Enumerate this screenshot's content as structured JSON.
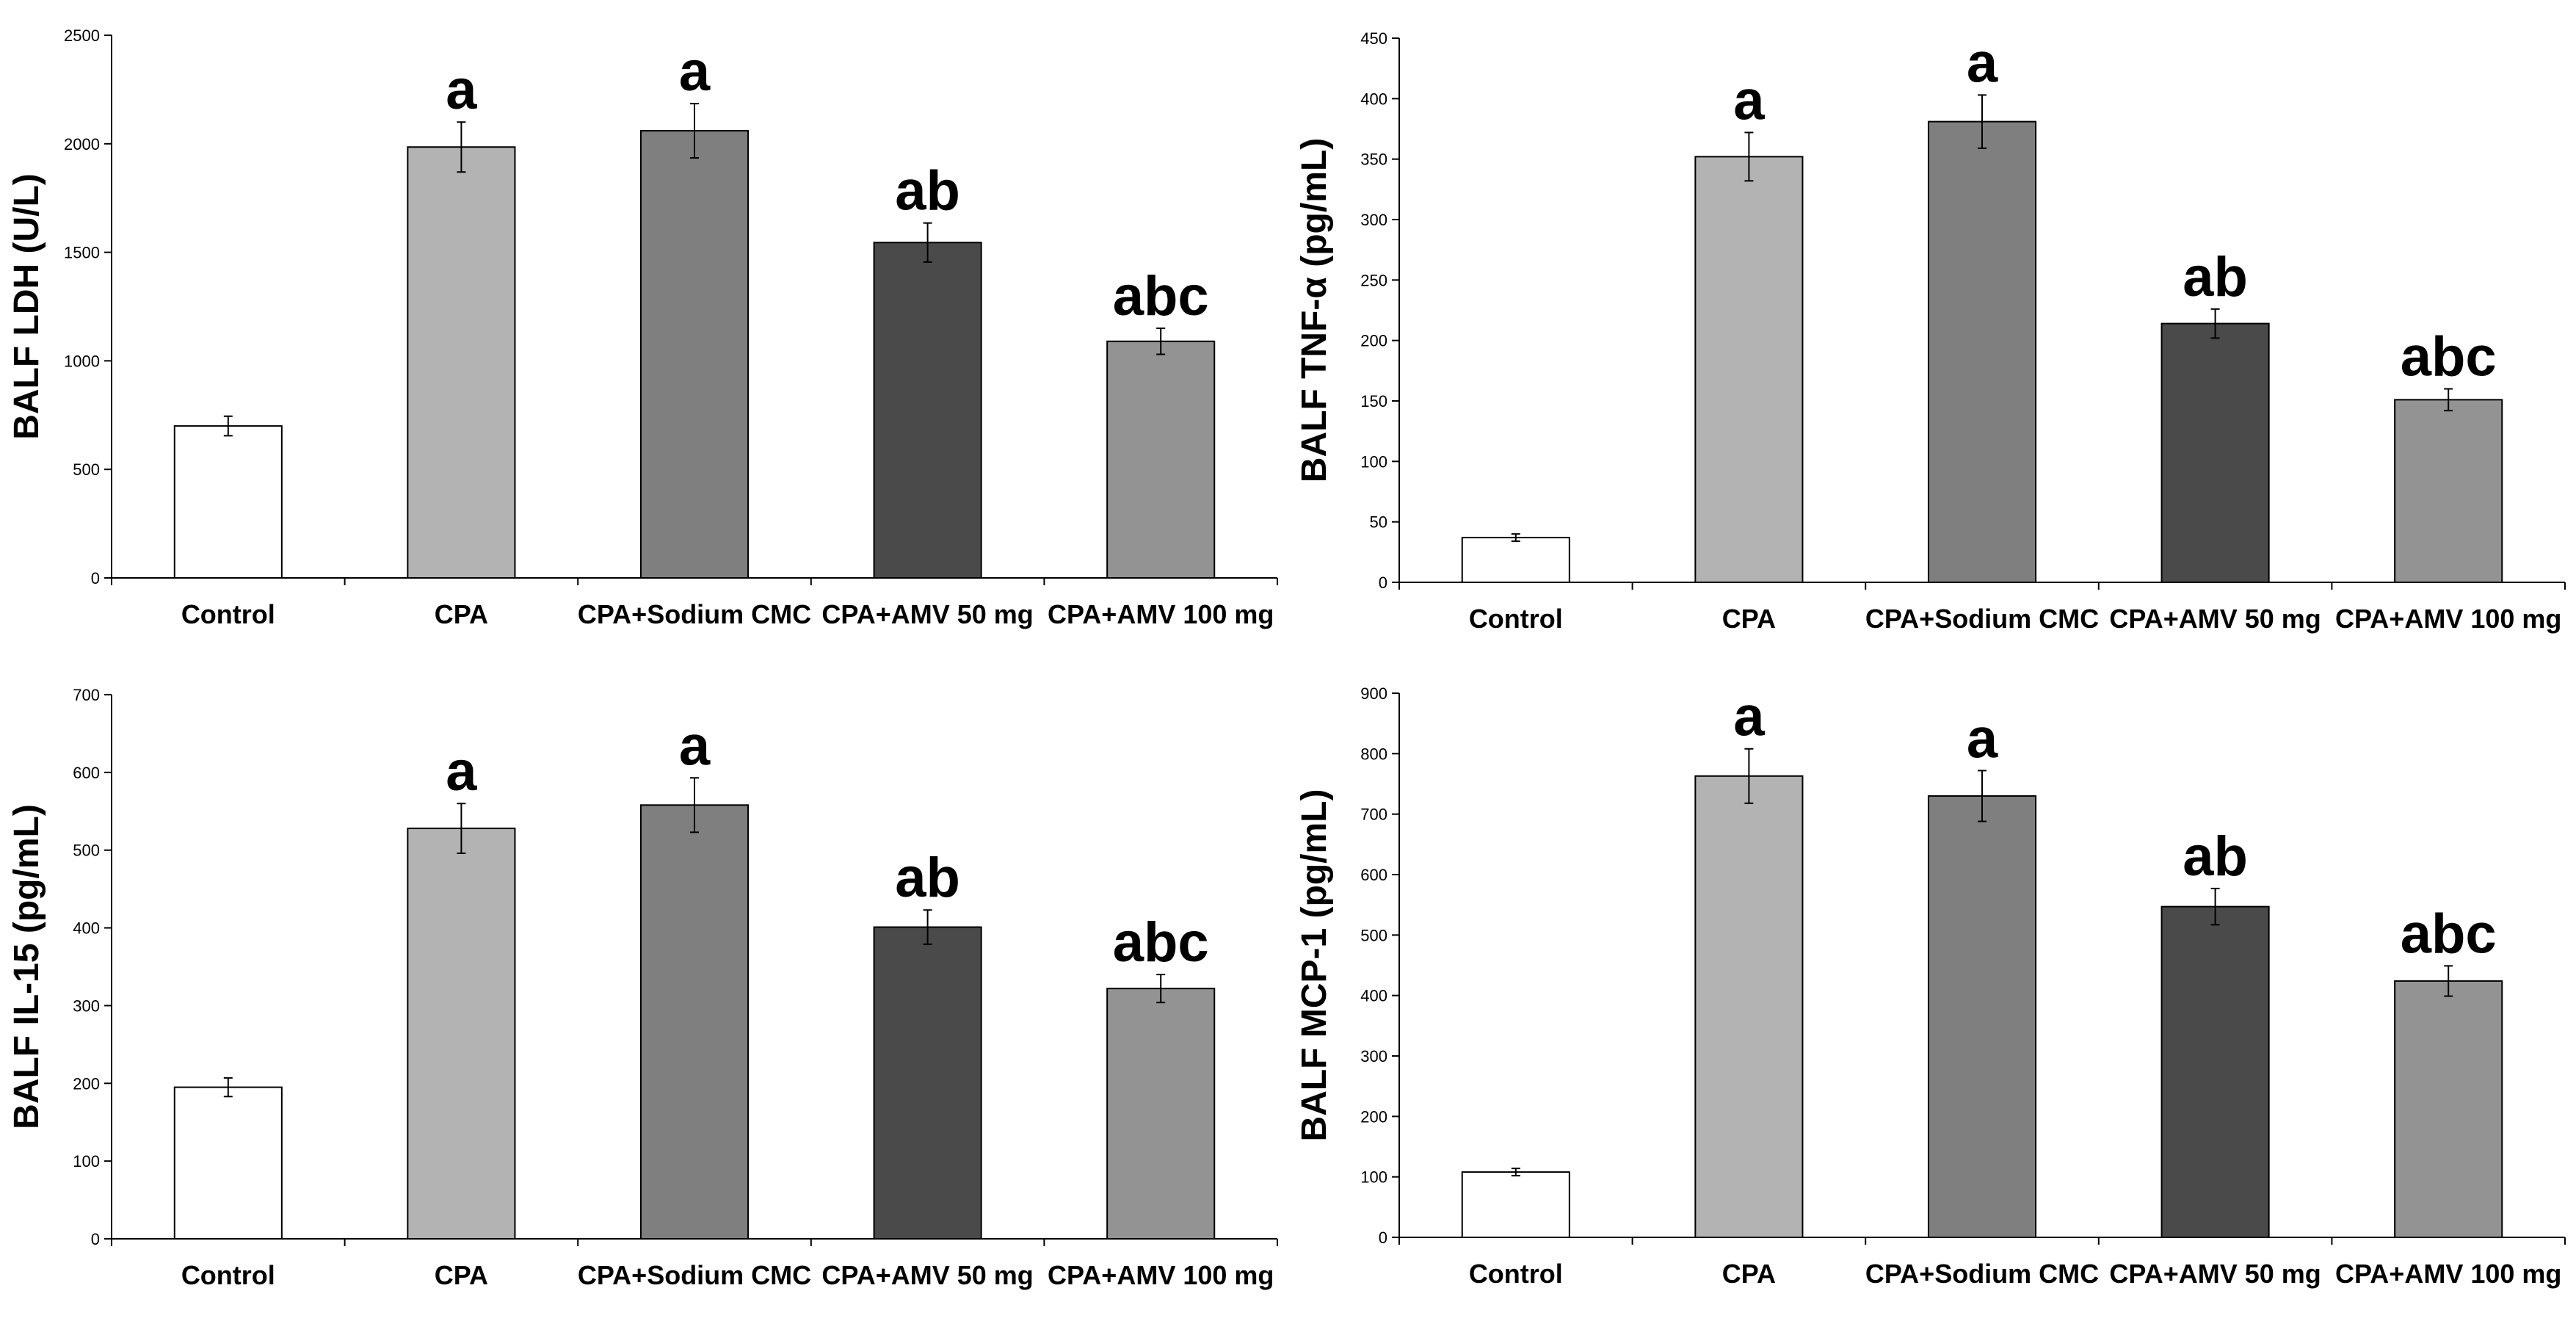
{
  "chart_data": [
    {
      "type": "bar",
      "ylabel": "BALF LDH (U/L)",
      "xlabel": "",
      "categories": [
        "Control",
        "CPA",
        "CPA+Sodium CMC",
        "CPA+AMV 50 mg",
        "CPA+AMV 100 mg"
      ],
      "values": [
        700,
        1985,
        2060,
        1545,
        1090
      ],
      "errors": [
        45,
        115,
        125,
        90,
        60
      ],
      "significance": [
        "",
        "a",
        "a",
        "ab",
        "abc"
      ],
      "ylim": [
        0,
        2500
      ],
      "yticks": [
        0,
        500,
        1000,
        1500,
        2000,
        2500
      ],
      "bar_colors": [
        "#ffffff",
        "#b3b3b3",
        "#7f7f7f",
        "#4a4a4a",
        "#939393"
      ]
    },
    {
      "type": "bar",
      "ylabel": "BALF TNF-α (pg/mL)",
      "xlabel": "",
      "categories": [
        "Control",
        "CPA",
        "CPA+Sodium CMC",
        "CPA+AMV 50 mg",
        "CPA+AMV 100 mg"
      ],
      "values": [
        37,
        352,
        381,
        214,
        151
      ],
      "errors": [
        3,
        20,
        22,
        12,
        9
      ],
      "significance": [
        "",
        "a",
        "a",
        "ab",
        "abc"
      ],
      "ylim": [
        0,
        450
      ],
      "yticks": [
        0,
        50,
        100,
        150,
        200,
        250,
        300,
        350,
        400,
        450
      ],
      "bar_colors": [
        "#ffffff",
        "#b3b3b3",
        "#7f7f7f",
        "#4a4a4a",
        "#939393"
      ]
    },
    {
      "type": "bar",
      "ylabel": "BALF IL-15 (pg/mL)",
      "xlabel": "",
      "categories": [
        "Control",
        "CPA",
        "CPA+Sodium CMC",
        "CPA+AMV 50 mg",
        "CPA+AMV 100 mg"
      ],
      "values": [
        195,
        528,
        558,
        401,
        322
      ],
      "errors": [
        12,
        32,
        35,
        22,
        18
      ],
      "significance": [
        "",
        "a",
        "a",
        "ab",
        "abc"
      ],
      "ylim": [
        0,
        700
      ],
      "yticks": [
        0,
        100,
        200,
        300,
        400,
        500,
        600,
        700
      ],
      "bar_colors": [
        "#ffffff",
        "#b3b3b3",
        "#7f7f7f",
        "#4a4a4a",
        "#939393"
      ]
    },
    {
      "type": "bar",
      "ylabel": "BALF MCP-1 (pg/mL)",
      "xlabel": "",
      "categories": [
        "Control",
        "CPA",
        "CPA+Sodium CMC",
        "CPA+AMV 50 mg",
        "CPA+AMV 100 mg"
      ],
      "values": [
        108,
        763,
        730,
        547,
        424
      ],
      "errors": [
        6,
        45,
        42,
        30,
        25
      ],
      "significance": [
        "",
        "a",
        "a",
        "ab",
        "abc"
      ],
      "ylim": [
        0,
        900
      ],
      "yticks": [
        0,
        100,
        200,
        300,
        400,
        500,
        600,
        700,
        800,
        900
      ],
      "bar_colors": [
        "#ffffff",
        "#b3b3b3",
        "#7f7f7f",
        "#4a4a4a",
        "#939393"
      ]
    }
  ]
}
